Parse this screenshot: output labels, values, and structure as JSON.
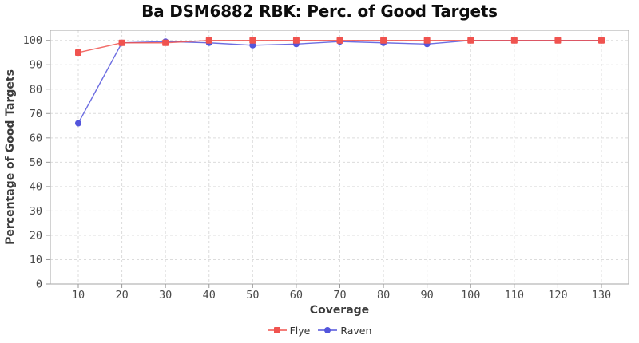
{
  "title": "Ba DSM6882 RBK: Perc. of Good Targets",
  "chart_data": {
    "type": "line",
    "x": [
      10,
      20,
      30,
      40,
      50,
      60,
      70,
      80,
      90,
      100,
      110,
      120,
      130
    ],
    "series": [
      {
        "name": "Raven",
        "color": "#5355dc",
        "marker": "circle",
        "values": [
          66,
          99,
          99.5,
          99,
          98,
          98.5,
          99.5,
          99,
          98.5,
          100,
          100,
          100,
          100
        ]
      },
      {
        "name": "Flye",
        "color": "#f0534f",
        "marker": "square",
        "values": [
          95,
          99,
          99,
          100,
          100,
          100,
          100,
          100,
          100,
          100,
          100,
          100,
          100
        ]
      }
    ],
    "legend_order": [
      "Flye",
      "Raven"
    ],
    "xlabel": "Coverage",
    "ylabel": "Percentage of Good Targets",
    "xlim": [
      10,
      130
    ],
    "ylim": [
      0,
      100
    ],
    "xticks": [
      10,
      20,
      30,
      40,
      50,
      60,
      70,
      80,
      90,
      100,
      110,
      120,
      130
    ],
    "yticks": [
      0,
      10,
      20,
      30,
      40,
      50,
      60,
      70,
      80,
      90,
      100
    ],
    "grid": "dashed",
    "legend_position": "bottom-center",
    "colors": {
      "grid": "#dcdcdc",
      "axis_box": "#b3b3b3",
      "tick": "#9a9a9a",
      "tick_label": "#4a4a4a",
      "axis_label": "#3c3c3c",
      "title": "#0d0d0d",
      "background": "#ffffff"
    }
  }
}
